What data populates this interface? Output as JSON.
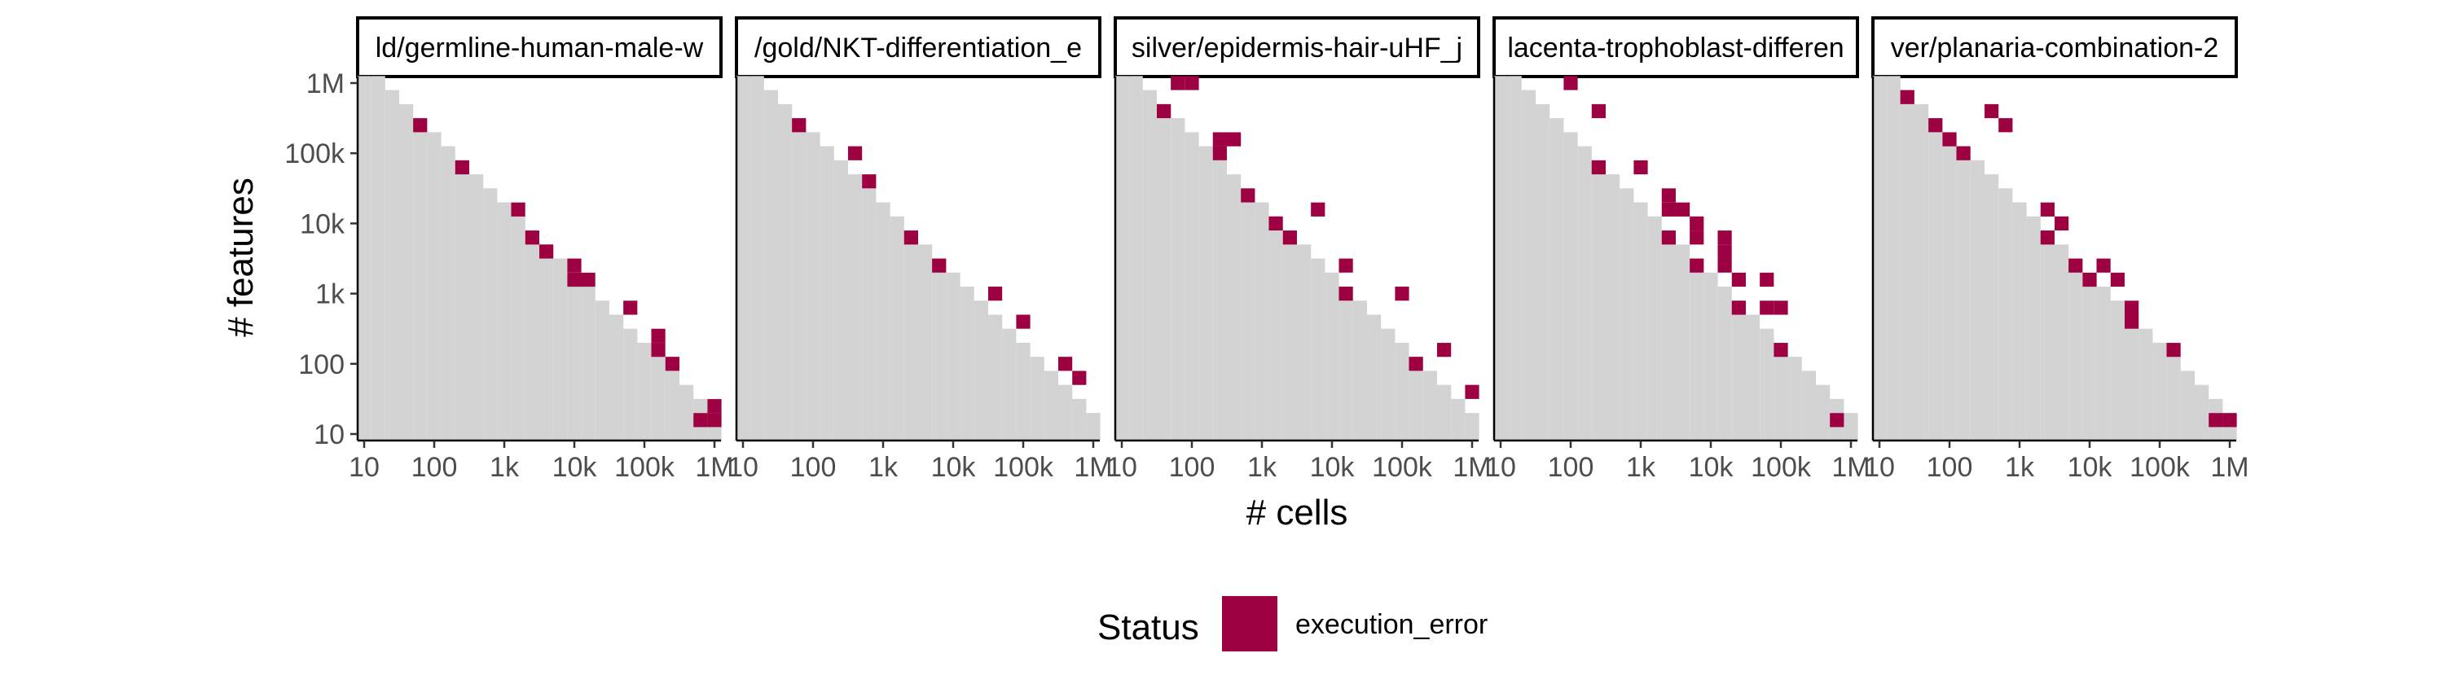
{
  "chart_data": {
    "type": "heatmap",
    "xlabel": "# cells",
    "ylabel": "# features",
    "x_ticks": [
      "10",
      "100",
      "1k",
      "10k",
      "100k",
      "1M"
    ],
    "y_ticks": [
      "10",
      "100",
      "1k",
      "10k",
      "100k",
      "1M"
    ],
    "x_tick_values": [
      10,
      100,
      1000,
      10000,
      100000,
      1000000
    ],
    "y_tick_values": [
      10,
      100,
      1000,
      10000,
      100000,
      1000000
    ],
    "xlim": [
      10,
      1000000
    ],
    "ylim": [
      10,
      1000000
    ],
    "scale": "log10",
    "legend": {
      "title": "Status",
      "position": "bottom",
      "entries": [
        {
          "label": "execution_error",
          "color": "#9e0142"
        }
      ]
    },
    "colors": {
      "background": "#d3d3d3",
      "execution_error": "#9e0142"
    },
    "panels": [
      {
        "title": "ld/germline-human-male-w",
        "execution_error": [
          {
            "x": 63,
            "y": 251000
          },
          {
            "x": 251,
            "y": 63000
          },
          {
            "x": 1580,
            "y": 15800
          },
          {
            "x": 2510,
            "y": 6300
          },
          {
            "x": 3980,
            "y": 3980
          },
          {
            "x": 10000,
            "y": 2510
          },
          {
            "x": 10000,
            "y": 1580
          },
          {
            "x": 15800,
            "y": 1580
          },
          {
            "x": 63000,
            "y": 630
          },
          {
            "x": 158000,
            "y": 251
          },
          {
            "x": 158000,
            "y": 158
          },
          {
            "x": 251000,
            "y": 100
          },
          {
            "x": 631000,
            "y": 15.8
          },
          {
            "x": 1000000,
            "y": 15.8
          },
          {
            "x": 1000000,
            "y": 25
          }
        ]
      },
      {
        "title": "/gold/NKT-differentiation_e",
        "execution_error": [
          {
            "x": 63,
            "y": 251000
          },
          {
            "x": 398,
            "y": 100000
          },
          {
            "x": 631,
            "y": 39800
          },
          {
            "x": 2510,
            "y": 6300
          },
          {
            "x": 6300,
            "y": 2510
          },
          {
            "x": 39800,
            "y": 1000
          },
          {
            "x": 100000,
            "y": 398
          },
          {
            "x": 398000,
            "y": 100
          },
          {
            "x": 631000,
            "y": 63
          }
        ]
      },
      {
        "title": "silver/epidermis-hair-uHF_j",
        "execution_error": [
          {
            "x": 63,
            "y": 1000000
          },
          {
            "x": 100,
            "y": 1000000
          },
          {
            "x": 39.8,
            "y": 398000
          },
          {
            "x": 251,
            "y": 158000
          },
          {
            "x": 398,
            "y": 158000
          },
          {
            "x": 251,
            "y": 100000
          },
          {
            "x": 631,
            "y": 25100
          },
          {
            "x": 1580,
            "y": 10000
          },
          {
            "x": 2510,
            "y": 6300
          },
          {
            "x": 6300,
            "y": 15800
          },
          {
            "x": 15800,
            "y": 2510
          },
          {
            "x": 15800,
            "y": 1000
          },
          {
            "x": 100000,
            "y": 1000
          },
          {
            "x": 158000,
            "y": 100
          },
          {
            "x": 398000,
            "y": 158
          },
          {
            "x": 1000000,
            "y": 39.8
          }
        ]
      },
      {
        "title": "lacenta-trophoblast-differen",
        "execution_error": [
          {
            "x": 100,
            "y": 1000000
          },
          {
            "x": 251,
            "y": 398000
          },
          {
            "x": 251,
            "y": 63000
          },
          {
            "x": 1000,
            "y": 63000
          },
          {
            "x": 2510,
            "y": 25100
          },
          {
            "x": 2510,
            "y": 15800
          },
          {
            "x": 3980,
            "y": 15800
          },
          {
            "x": 2510,
            "y": 6300
          },
          {
            "x": 6300,
            "y": 10000
          },
          {
            "x": 6300,
            "y": 6300
          },
          {
            "x": 6300,
            "y": 2510
          },
          {
            "x": 15800,
            "y": 6300
          },
          {
            "x": 15800,
            "y": 3980
          },
          {
            "x": 15800,
            "y": 2510
          },
          {
            "x": 25100,
            "y": 1580
          },
          {
            "x": 25100,
            "y": 630
          },
          {
            "x": 63000,
            "y": 1580
          },
          {
            "x": 63000,
            "y": 630
          },
          {
            "x": 100000,
            "y": 630
          },
          {
            "x": 100000,
            "y": 158
          },
          {
            "x": 631000,
            "y": 15.8
          }
        ]
      },
      {
        "title": "ver/planaria-combination-2",
        "execution_error": [
          {
            "x": 25,
            "y": 631000
          },
          {
            "x": 63,
            "y": 251000
          },
          {
            "x": 100,
            "y": 158000
          },
          {
            "x": 158,
            "y": 100000
          },
          {
            "x": 398,
            "y": 398000
          },
          {
            "x": 631,
            "y": 251000
          },
          {
            "x": 2510,
            "y": 15800
          },
          {
            "x": 2510,
            "y": 6300
          },
          {
            "x": 3980,
            "y": 10000
          },
          {
            "x": 6300,
            "y": 2510
          },
          {
            "x": 10000,
            "y": 1580
          },
          {
            "x": 15800,
            "y": 2510
          },
          {
            "x": 25100,
            "y": 1580
          },
          {
            "x": 39800,
            "y": 630
          },
          {
            "x": 39800,
            "y": 398
          },
          {
            "x": 158000,
            "y": 158
          },
          {
            "x": 631000,
            "y": 15.8
          },
          {
            "x": 1000000,
            "y": 15.8
          }
        ]
      }
    ]
  }
}
